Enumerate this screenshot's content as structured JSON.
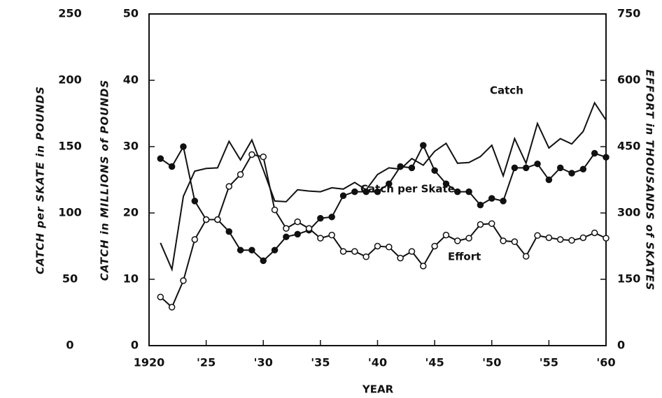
{
  "chart_data": {
    "type": "line",
    "x_label": "YEAR",
    "y_label": "CATCH in MILLIONS of POUNDS",
    "y2_label": "EFFORT in THOUSANDS of SKATES",
    "y3_label": "CATCH per SKATE in POUNDS",
    "x": [
      1921,
      1922,
      1923,
      1924,
      1925,
      1926,
      1927,
      1928,
      1929,
      1930,
      1931,
      1932,
      1933,
      1934,
      1935,
      1936,
      1937,
      1938,
      1939,
      1940,
      1941,
      1942,
      1943,
      1944,
      1945,
      1946,
      1947,
      1948,
      1949,
      1950,
      1951,
      1952,
      1953,
      1954,
      1955,
      1956,
      1957,
      1958,
      1959,
      1960
    ],
    "xlim": [
      1920,
      1960
    ],
    "xticks": [
      1920,
      {
        "value": 1925,
        "label": "'25"
      },
      {
        "value": 1930,
        "label": "'30"
      },
      {
        "value": 1935,
        "label": "'35"
      },
      {
        "value": 1940,
        "label": "'40"
      },
      {
        "value": 1945,
        "label": "'45"
      },
      {
        "value": 1950,
        "label": "'50"
      },
      {
        "value": 1955,
        "label": "'55"
      },
      {
        "value": 1960,
        "label": "'60"
      }
    ],
    "ylim": [
      0,
      50
    ],
    "yticks": [
      0,
      10,
      20,
      30,
      40,
      50
    ],
    "y2lim": [
      0,
      750
    ],
    "y2ticks": [
      0,
      150,
      300,
      450,
      600,
      750
    ],
    "y3lim": [
      0,
      250
    ],
    "y3ticks": [
      0,
      50,
      100,
      150,
      200,
      250
    ],
    "series": [
      {
        "name": "Catch",
        "color": "#111111",
        "axis": "y",
        "marker": "none",
        "values": [
          15.5,
          11.5,
          22.5,
          26.3,
          26.7,
          26.8,
          30.8,
          28,
          31,
          26.5,
          21.8,
          21.7,
          23.5,
          23.3,
          23.2,
          23.8,
          23.6,
          24.6,
          23.5,
          25.8,
          26.8,
          26.6,
          28.2,
          27.2,
          29.3,
          30.5,
          27.5,
          27.6,
          28.5,
          30.2,
          25.6,
          31.2,
          27.5,
          33.5,
          29.8,
          31.2,
          30.4,
          32.3,
          36.6,
          34
        ]
      },
      {
        "name": "Catch per Skate",
        "color": "#111111",
        "axis": "y3",
        "marker": "filled",
        "values": [
          141,
          135,
          150,
          109,
          95,
          95,
          86,
          72,
          72,
          64,
          72,
          82,
          84,
          87,
          96,
          97,
          113,
          116,
          116,
          116,
          122,
          135,
          134,
          151,
          132,
          122,
          116,
          116,
          106,
          111,
          109,
          134,
          134,
          137,
          125,
          134,
          130,
          133,
          145,
          142
        ]
      },
      {
        "name": "Effort",
        "color": "#111111",
        "axis": "y2",
        "marker": "open",
        "values": [
          110,
          87,
          147,
          240,
          285,
          285,
          360,
          387,
          432,
          427,
          307,
          265,
          280,
          265,
          243,
          250,
          213,
          213,
          201,
          225,
          223,
          198,
          213,
          180,
          225,
          250,
          237,
          243,
          274,
          276,
          237,
          235,
          202,
          249,
          244,
          240,
          238,
          244,
          255,
          243
        ]
      }
    ]
  }
}
